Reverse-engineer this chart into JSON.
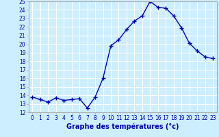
{
  "hours": [
    0,
    1,
    2,
    3,
    4,
    5,
    6,
    7,
    8,
    9,
    10,
    11,
    12,
    13,
    14,
    15,
    16,
    17,
    18,
    19,
    20,
    21,
    22,
    23
  ],
  "temperatures": [
    13.8,
    13.5,
    13.2,
    13.7,
    13.4,
    13.5,
    13.6,
    12.5,
    13.8,
    16.0,
    19.8,
    20.5,
    21.7,
    22.7,
    23.3,
    25.0,
    24.3,
    24.2,
    23.3,
    21.9,
    20.1,
    19.2,
    18.5,
    18.3
  ],
  "line_color": "#0000aa",
  "marker": "+",
  "marker_size": 4,
  "marker_linewidth": 1.0,
  "xlabel": "Graphe des températures (°c)",
  "xlabel_fontsize": 7,
  "xlabel_fontweight": "bold",
  "ylim": [
    12,
    25
  ],
  "xlim": [
    -0.5,
    23.5
  ],
  "yticks": [
    12,
    13,
    14,
    15,
    16,
    17,
    18,
    19,
    20,
    21,
    22,
    23,
    24,
    25
  ],
  "xticks": [
    0,
    1,
    2,
    3,
    4,
    5,
    6,
    7,
    8,
    9,
    10,
    11,
    12,
    13,
    14,
    15,
    16,
    17,
    18,
    19,
    20,
    21,
    22,
    23
  ],
  "background_color": "#cceeff",
  "grid_color": "#ffffff",
  "tick_label_fontsize": 5.5,
  "line_width": 1.0,
  "spine_color": "#aaaaaa"
}
